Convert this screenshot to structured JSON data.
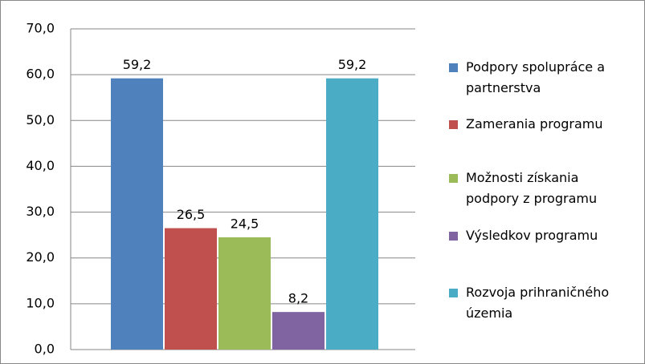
{
  "chart_data": {
    "type": "bar",
    "series": [
      {
        "name": "Podpory spolupráce a partnerstva",
        "color": "#4f81bd",
        "values": [
          59.2
        ],
        "value_labels": [
          "59,2"
        ]
      },
      {
        "name": "Zamerania programu",
        "color": "#c0504d",
        "values": [
          26.5
        ],
        "value_labels": [
          "26,5"
        ]
      },
      {
        "name": "Možnosti získania podpory z programu",
        "color": "#9bbb59",
        "values": [
          24.5
        ],
        "value_labels": [
          "24,5"
        ]
      },
      {
        "name": "Výsledkov programu",
        "color": "#8064a2",
        "values": [
          8.2
        ],
        "value_labels": [
          "8,2"
        ]
      },
      {
        "name": "Rozvoja prihraničného územia",
        "color": "#4bacc6",
        "values": [
          59.2
        ],
        "value_labels": [
          "59,2"
        ]
      }
    ],
    "ylim": [
      0,
      70
    ],
    "yticks": [
      {
        "value": 0,
        "label": "0,0"
      },
      {
        "value": 10,
        "label": "10,0"
      },
      {
        "value": 20,
        "label": "20,0"
      },
      {
        "value": 30,
        "label": "30,0"
      },
      {
        "value": 40,
        "label": "40,0"
      },
      {
        "value": 50,
        "label": "50,0"
      },
      {
        "value": 60,
        "label": "60,0"
      },
      {
        "value": 70,
        "label": "70,0"
      }
    ],
    "grid": true,
    "legend": "right"
  }
}
